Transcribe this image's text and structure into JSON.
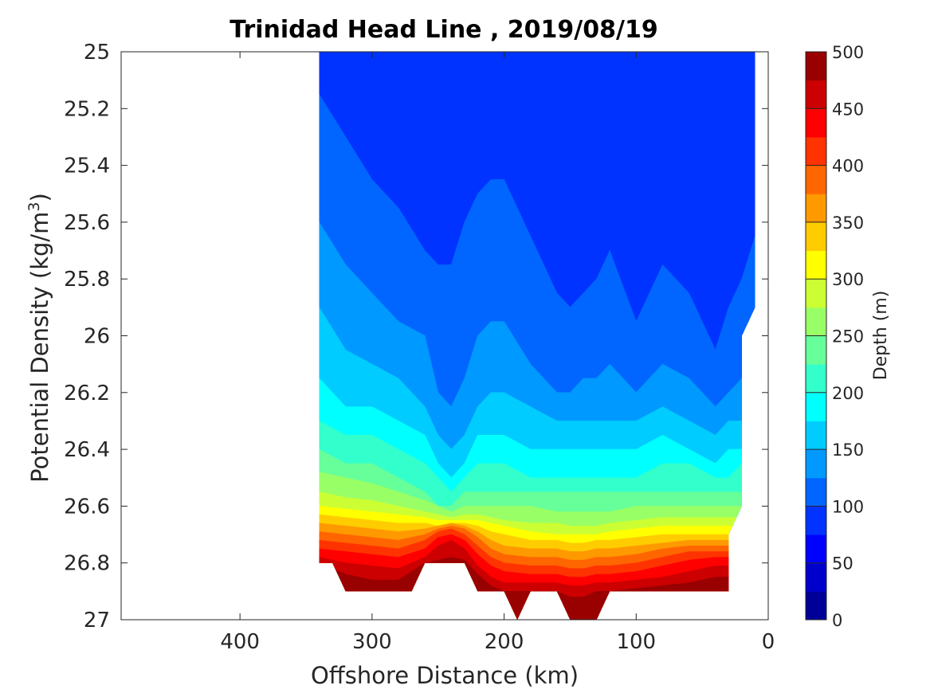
{
  "chart_data": {
    "type": "contour",
    "title": "Trinidad Head Line , 2019/08/19",
    "xlabel": "Offshore Distance (km)",
    "ylabel_main": "Potential Density (kg/m",
    "ylabel_sup": "3",
    "ylabel_tail": ")",
    "x_reversed": true,
    "xlim": [
      490,
      0
    ],
    "ylim": [
      25,
      27
    ],
    "y_reversed": true,
    "x_ticks": [
      400,
      300,
      200,
      100,
      0
    ],
    "y_ticks": [
      "25",
      "25.2",
      "25.4",
      "25.6",
      "25.8",
      "26",
      "26.2",
      "26.4",
      "26.6",
      "26.8",
      "27"
    ],
    "colorbar": {
      "label": "Depth (m)",
      "range": [
        0,
        500
      ],
      "step": 25,
      "ticks": [
        0,
        50,
        100,
        150,
        200,
        250,
        300,
        350,
        400,
        450,
        500
      ],
      "colormap": "jet"
    },
    "stations_x": [
      340,
      320,
      300,
      280,
      260,
      250,
      240,
      230,
      220,
      210,
      200,
      180,
      160,
      150,
      140,
      130,
      120,
      100,
      80,
      60,
      40,
      30,
      20,
      10
    ],
    "isopleths": [
      {
        "depth": 25,
        "y": [
          25.0,
          25.0,
          25.0,
          25.0,
          25.0,
          25.0,
          25.0,
          25.0,
          25.0,
          25.0,
          25.0,
          25.0,
          25.0,
          25.0,
          25.0,
          25.0,
          25.0,
          25.0,
          25.0,
          25.0,
          25.0,
          25.0,
          25.0,
          25.0
        ]
      },
      {
        "depth": 50,
        "y": [
          25.0,
          25.0,
          25.0,
          25.0,
          25.0,
          25.0,
          25.0,
          25.0,
          25.0,
          25.0,
          25.0,
          25.0,
          25.0,
          25.0,
          25.0,
          25.0,
          25.0,
          25.19,
          25.2,
          25.0,
          25.0,
          25.0,
          25.0,
          25.0
        ]
      },
      {
        "depth": 75,
        "y": [
          25.0,
          25.0,
          25.0,
          25.0,
          25.0,
          25.0,
          25.0,
          25.0,
          25.0,
          25.0,
          25.0,
          25.0,
          25.0,
          25.0,
          25.0,
          25.0,
          25.0,
          25.0,
          25.0,
          25.0,
          25.0,
          25.0,
          25.0,
          25.0
        ]
      },
      {
        "depth": 100,
        "y": [
          25.15,
          25.3,
          25.45,
          25.55,
          25.7,
          25.75,
          25.75,
          25.6,
          25.5,
          25.45,
          25.45,
          25.65,
          25.85,
          25.9,
          25.85,
          25.8,
          25.7,
          25.95,
          25.75,
          25.85,
          26.05,
          25.9,
          25.8,
          25.65
        ]
      },
      {
        "depth": 125,
        "y": [
          25.6,
          25.75,
          25.85,
          25.95,
          26.0,
          26.2,
          26.25,
          26.15,
          26.0,
          25.95,
          25.95,
          26.1,
          26.2,
          26.2,
          26.15,
          26.15,
          26.1,
          26.2,
          26.1,
          26.15,
          26.25,
          26.2,
          26.15,
          26.1
        ]
      },
      {
        "depth": 150,
        "y": [
          25.9,
          26.05,
          26.1,
          26.15,
          26.25,
          26.35,
          26.4,
          26.35,
          26.25,
          26.2,
          26.2,
          26.25,
          26.3,
          26.3,
          26.3,
          26.3,
          26.3,
          26.3,
          26.25,
          26.3,
          26.35,
          26.3,
          26.3,
          26.25
        ]
      },
      {
        "depth": 175,
        "y": [
          26.15,
          26.25,
          26.25,
          26.3,
          26.35,
          26.45,
          26.5,
          26.45,
          26.35,
          26.35,
          26.35,
          26.4,
          26.4,
          26.4,
          26.4,
          26.4,
          26.4,
          26.4,
          26.35,
          26.4,
          26.45,
          26.4,
          26.4,
          26.35
        ]
      },
      {
        "depth": 200,
        "y": [
          26.3,
          26.35,
          26.35,
          26.4,
          26.45,
          26.5,
          26.55,
          26.5,
          26.45,
          26.45,
          26.45,
          26.5,
          26.5,
          26.5,
          26.5,
          26.5,
          26.5,
          26.5,
          26.45,
          26.45,
          26.5,
          26.5,
          26.45,
          26.45
        ]
      },
      {
        "depth": 225,
        "y": [
          26.4,
          26.45,
          26.45,
          26.5,
          26.55,
          26.6,
          26.6,
          26.55,
          26.55,
          26.55,
          26.55,
          26.55,
          26.55,
          26.55,
          26.55,
          26.55,
          26.55,
          26.55,
          26.55,
          26.55,
          26.55,
          26.55,
          26.55,
          26.55
        ]
      },
      {
        "depth": 250,
        "y": [
          26.48,
          26.5,
          26.52,
          26.55,
          26.58,
          26.6,
          26.62,
          26.6,
          26.6,
          26.6,
          26.6,
          26.6,
          26.62,
          26.62,
          26.62,
          26.62,
          26.62,
          26.6,
          26.6,
          26.6,
          26.6,
          26.6,
          26.6,
          26.6
        ]
      },
      {
        "depth": 275,
        "y": [
          26.55,
          26.57,
          26.58,
          26.6,
          26.62,
          26.63,
          26.64,
          26.63,
          26.63,
          26.64,
          26.65,
          26.66,
          26.66,
          26.67,
          26.67,
          26.67,
          26.66,
          26.65,
          26.64,
          26.64,
          26.64,
          26.64,
          26.64,
          26.64
        ]
      },
      {
        "depth": 300,
        "y": [
          26.6,
          26.61,
          26.62,
          26.63,
          26.64,
          26.65,
          26.65,
          26.65,
          26.65,
          26.66,
          26.67,
          26.69,
          26.7,
          26.7,
          26.7,
          26.7,
          26.69,
          26.68,
          26.67,
          26.67,
          26.67,
          26.67,
          26.67,
          26.67
        ]
      },
      {
        "depth": 325,
        "y": [
          26.63,
          26.64,
          26.65,
          26.66,
          26.66,
          26.67,
          26.66,
          26.66,
          26.67,
          26.69,
          26.7,
          26.72,
          26.72,
          26.73,
          26.73,
          26.72,
          26.72,
          26.71,
          26.7,
          26.7,
          26.7,
          26.7,
          26.7,
          26.7
        ]
      },
      {
        "depth": 350,
        "y": [
          26.66,
          26.67,
          26.68,
          26.69,
          26.68,
          26.67,
          26.66,
          26.67,
          26.69,
          26.72,
          26.74,
          26.75,
          26.75,
          26.76,
          26.76,
          26.75,
          26.75,
          26.74,
          26.73,
          26.72,
          26.72,
          26.72,
          26.72,
          26.72
        ]
      },
      {
        "depth": 375,
        "y": [
          26.69,
          26.7,
          26.71,
          26.72,
          26.7,
          26.68,
          26.67,
          26.68,
          26.71,
          26.75,
          26.77,
          26.78,
          26.78,
          26.79,
          26.79,
          26.78,
          26.78,
          26.77,
          26.75,
          26.74,
          26.74,
          26.74,
          26.74,
          26.74
        ]
      },
      {
        "depth": 400,
        "y": [
          26.72,
          26.73,
          26.74,
          26.75,
          26.72,
          26.69,
          26.68,
          26.7,
          26.74,
          26.78,
          26.8,
          26.81,
          26.81,
          26.82,
          26.82,
          26.81,
          26.81,
          26.8,
          26.78,
          26.76,
          26.76,
          26.76,
          26.76,
          26.76
        ]
      },
      {
        "depth": 425,
        "y": [
          26.75,
          26.76,
          26.77,
          26.78,
          26.75,
          26.71,
          26.7,
          26.72,
          26.77,
          26.81,
          26.83,
          26.84,
          26.84,
          26.85,
          26.85,
          26.84,
          26.84,
          26.83,
          26.81,
          26.79,
          26.78,
          26.78,
          26.78,
          26.78
        ]
      },
      {
        "depth": 450,
        "y": [
          26.78,
          26.8,
          26.81,
          26.82,
          26.78,
          26.74,
          26.72,
          26.75,
          26.81,
          26.85,
          26.87,
          26.87,
          26.87,
          26.88,
          26.88,
          26.87,
          26.87,
          26.86,
          26.85,
          26.83,
          26.81,
          26.81,
          26.81,
          26.81
        ]
      },
      {
        "depth": 475,
        "y": [
          26.8,
          26.84,
          26.86,
          26.86,
          26.8,
          26.79,
          26.78,
          26.79,
          26.84,
          26.88,
          26.9,
          26.9,
          26.9,
          26.92,
          26.92,
          26.9,
          26.9,
          26.89,
          26.88,
          26.87,
          26.85,
          26.85,
          26.85,
          26.85
        ]
      }
    ],
    "data_extent": {
      "left_x": 340,
      "top_y": 25.0,
      "right_edge": [
        [
          10,
          25.0
        ],
        [
          10,
          25.9
        ],
        [
          20,
          26.0
        ],
        [
          20,
          26.6
        ],
        [
          30,
          26.7
        ],
        [
          30,
          26.9
        ]
      ],
      "bottom_edge": [
        [
          30,
          26.9
        ],
        [
          120,
          26.9
        ],
        [
          130,
          27.0
        ],
        [
          150,
          27.0
        ],
        [
          160,
          26.9
        ],
        [
          180,
          26.9
        ],
        [
          190,
          27.0
        ],
        [
          200,
          26.9
        ],
        [
          220,
          26.9
        ],
        [
          230,
          26.8
        ],
        [
          260,
          26.8
        ],
        [
          270,
          26.9
        ],
        [
          320,
          26.9
        ],
        [
          330,
          26.8
        ],
        [
          340,
          26.8
        ]
      ]
    }
  }
}
